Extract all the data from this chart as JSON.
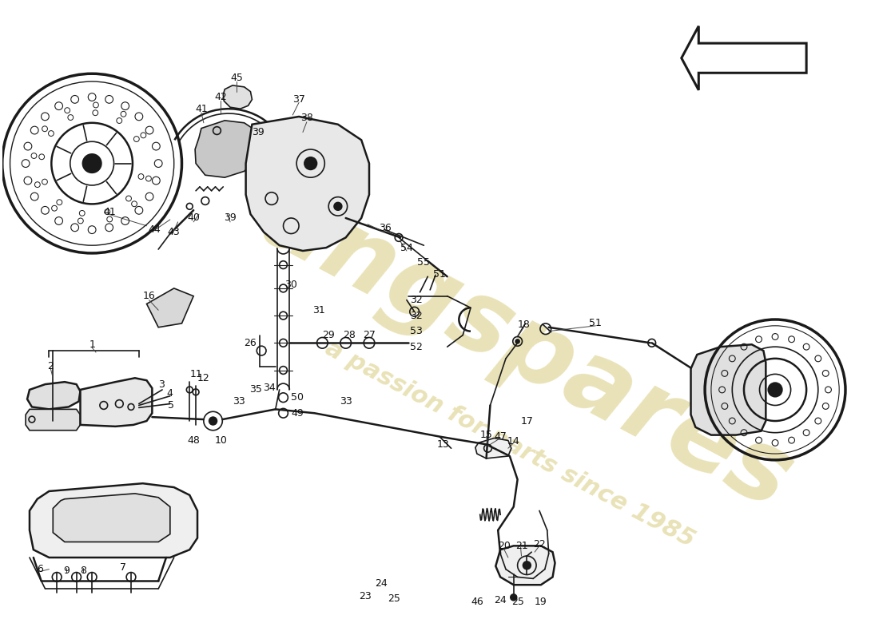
{
  "bg_color": "#ffffff",
  "line_color": "#1a1a1a",
  "label_color": "#111111",
  "watermark_color": "#cfc060",
  "watermark_alpha": 0.45,
  "figsize": [
    11.0,
    8.0
  ],
  "dpi": 100
}
